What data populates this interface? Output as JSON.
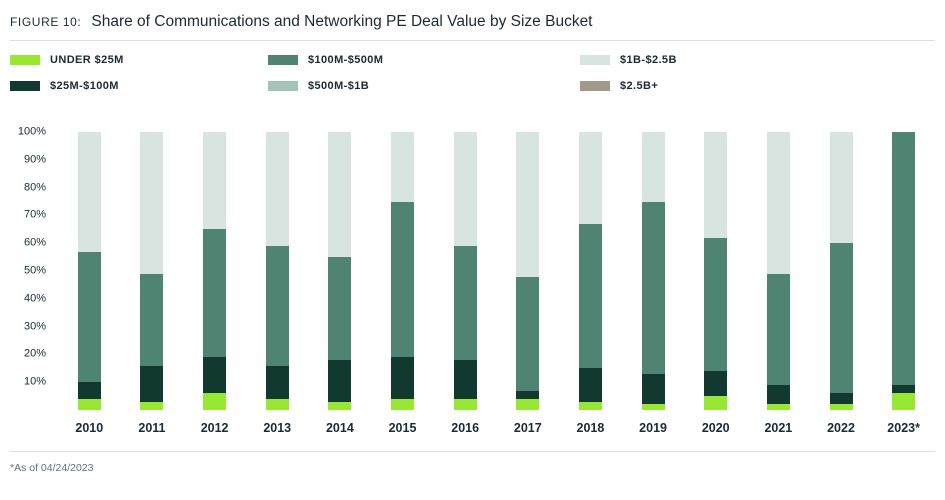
{
  "header": {
    "figure_label": "FIGURE 10:",
    "title": "Share of Communications and Networking PE Deal Value by Size Bucket"
  },
  "legend": {
    "items": [
      {
        "label": "UNDER $25M",
        "color": "#97E733"
      },
      {
        "label": "$100M-$500M",
        "color": "#4E8471"
      },
      {
        "label": "$1B-$2.5B",
        "color": "#D7E4DF"
      },
      {
        "label": "$25M-$100M",
        "color": "#12392F"
      },
      {
        "label": "$500M-$1B",
        "color": "#A4C4B9"
      },
      {
        "label": "$2.5B+",
        "color": "#A3998A"
      }
    ]
  },
  "chart_data": {
    "type": "bar",
    "subtype": "stacked-percent",
    "title": "Share of Communications and Networking PE Deal Value by Size Bucket",
    "xlabel": "",
    "ylabel": "",
    "ylim": [
      0,
      100
    ],
    "grid": false,
    "legend_position": "top",
    "categories": [
      "2010",
      "2011",
      "2012",
      "2013",
      "2014",
      "2015",
      "2016",
      "2017",
      "2018",
      "2019",
      "2020",
      "2021",
      "2022",
      "2023*"
    ],
    "yticks": [
      "10%",
      "20%",
      "30%",
      "40%",
      "50%",
      "60%",
      "70%",
      "80%",
      "90%",
      "100%"
    ],
    "series": [
      {
        "name": "Under $25M",
        "color": "#97E733",
        "values": [
          4,
          3,
          6,
          4,
          3,
          4,
          4,
          4,
          3,
          2,
          5,
          2,
          2,
          6
        ]
      },
      {
        "name": "$25M-$100M",
        "color": "#12392F",
        "values": [
          6,
          13,
          13,
          12,
          15,
          15,
          14,
          3,
          12,
          11,
          9,
          7,
          4,
          3
        ]
      },
      {
        "name": "$100M-$500M",
        "color": "#4E8471",
        "values": [
          47,
          33,
          46,
          43,
          37,
          56,
          41,
          41,
          52,
          62,
          48,
          40,
          54,
          91
        ]
      },
      {
        "name": "$500M-$1B",
        "color": "#A4C4B9",
        "values": [
          0,
          0,
          0,
          0,
          0,
          0,
          0,
          0,
          0,
          0,
          0,
          0,
          0,
          0
        ]
      },
      {
        "name": "$1B-$2.5B",
        "color": "#D7E4DF",
        "values": [
          43,
          51,
          35,
          41,
          45,
          25,
          41,
          52,
          33,
          25,
          38,
          51,
          40,
          0
        ]
      },
      {
        "name": "$2.5B+",
        "color": "#A3998A",
        "values": [
          0,
          0,
          0,
          0,
          0,
          0,
          0,
          0,
          0,
          0,
          0,
          0,
          0,
          0
        ]
      }
    ]
  },
  "footnote": {
    "text": "*As of 04/24/2023"
  }
}
